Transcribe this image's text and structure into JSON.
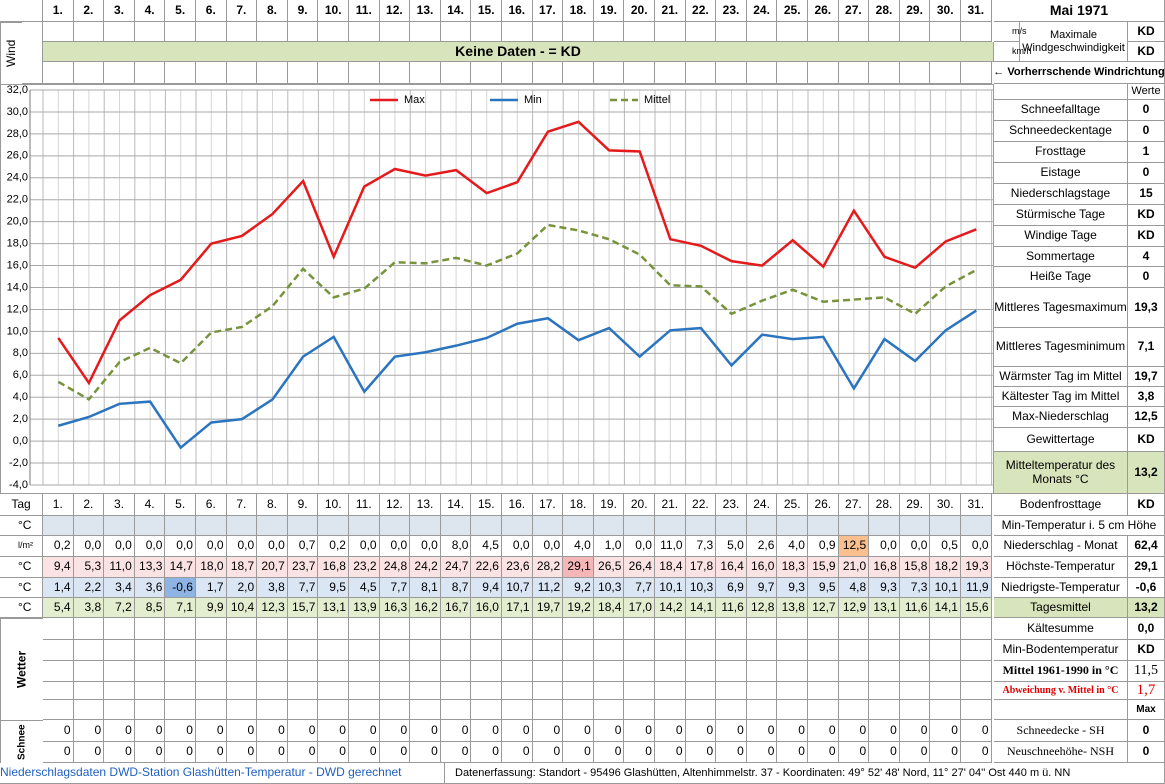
{
  "header": {
    "month": "Mai 1971",
    "wind_label": "Wind",
    "unit_ms": "m/s",
    "unit_kmh": "km/h",
    "wind_max_label": "Maximale Windgeschwindigkeit",
    "wind_max_ms": "KD",
    "wind_max_kmh": "KD",
    "no_data": "Keine Daten -  = KD",
    "wind_direction": "← Vorherrschende Windrichtung",
    "werte": "Werte"
  },
  "chart_data": {
    "type": "line",
    "categories": [
      "1.",
      "2.",
      "3.",
      "4.",
      "5.",
      "6.",
      "7.",
      "8.",
      "9.",
      "10.",
      "11.",
      "12.",
      "13.",
      "14.",
      "15.",
      "16.",
      "17.",
      "18.",
      "19.",
      "20.",
      "21.",
      "22.",
      "23.",
      "24.",
      "25.",
      "26.",
      "27.",
      "28.",
      "29.",
      "30.",
      "31."
    ],
    "ylim": [
      -4,
      32
    ],
    "yticks": [
      {
        "value": -4,
        "label": "-4,0"
      },
      {
        "value": -2,
        "label": "-2,0"
      },
      {
        "value": 0,
        "label": "0,0"
      },
      {
        "value": 2,
        "label": "2,0"
      },
      {
        "value": 4,
        "label": "4,0"
      },
      {
        "value": 6,
        "label": "6,0"
      },
      {
        "value": 8,
        "label": "8,0"
      },
      {
        "value": 10,
        "label": "10,0"
      },
      {
        "value": 12,
        "label": "12,0"
      },
      {
        "value": 14,
        "label": "14,0"
      },
      {
        "value": 16,
        "label": "16,0"
      },
      {
        "value": 18,
        "label": "18,0"
      },
      {
        "value": 20,
        "label": "20,0"
      },
      {
        "value": 22,
        "label": "22,0"
      },
      {
        "value": 24,
        "label": "24,0"
      },
      {
        "value": 26,
        "label": "26,0"
      },
      {
        "value": 28,
        "label": "28,0"
      },
      {
        "value": 30,
        "label": "30,0"
      },
      {
        "value": 32,
        "label": "32,0"
      }
    ],
    "grid": true,
    "series": [
      {
        "name": "Max",
        "color": "#e41a1c",
        "dashed": false,
        "values": [
          9.4,
          5.3,
          11.0,
          13.3,
          14.7,
          18.0,
          18.7,
          20.7,
          23.7,
          16.8,
          23.2,
          24.8,
          24.2,
          24.7,
          22.6,
          23.6,
          28.2,
          29.1,
          26.5,
          26.4,
          18.4,
          17.8,
          16.4,
          16.0,
          18.3,
          15.9,
          21.0,
          16.8,
          15.8,
          18.2,
          19.3
        ],
        "value_labels": [
          "9,4",
          "5,3",
          "11,0",
          "13,3",
          "14,7",
          "18,0",
          "18,7",
          "20,7",
          "23,7",
          "16,8",
          "23,2",
          "24,8",
          "24,2",
          "24,7",
          "22,6",
          "23,6",
          "28,2",
          "29,1",
          "26,5",
          "26,4",
          "18,4",
          "17,8",
          "16,4",
          "16,0",
          "18,3",
          "15,9",
          "21,0",
          "16,8",
          "15,8",
          "18,2",
          "19,3"
        ]
      },
      {
        "name": "Min",
        "color": "#2a74c0",
        "dashed": false,
        "values": [
          1.4,
          2.2,
          3.4,
          3.6,
          -0.6,
          1.7,
          2.0,
          3.8,
          7.7,
          9.5,
          4.5,
          7.7,
          8.1,
          8.7,
          9.4,
          10.7,
          11.2,
          9.2,
          10.3,
          7.7,
          10.1,
          10.3,
          6.9,
          9.7,
          9.3,
          9.5,
          4.8,
          9.3,
          7.3,
          10.1,
          11.9
        ],
        "value_labels": [
          "1,4",
          "2,2",
          "3,4",
          "3,6",
          "-0,6",
          "1,7",
          "2,0",
          "3,8",
          "7,7",
          "9,5",
          "4,5",
          "7,7",
          "8,1",
          "8,7",
          "9,4",
          "10,7",
          "11,2",
          "9,2",
          "10,3",
          "7,7",
          "10,1",
          "10,3",
          "6,9",
          "9,7",
          "9,3",
          "9,5",
          "4,8",
          "9,3",
          "7,3",
          "10,1",
          "11,9"
        ]
      },
      {
        "name": "Mittel",
        "color": "#77933c",
        "dashed": true,
        "values": [
          5.4,
          3.8,
          7.2,
          8.5,
          7.1,
          9.9,
          10.4,
          12.3,
          15.7,
          13.1,
          13.9,
          16.3,
          16.2,
          16.7,
          16.0,
          17.1,
          19.7,
          19.2,
          18.4,
          17.0,
          14.2,
          14.1,
          11.6,
          12.8,
          13.8,
          12.7,
          12.9,
          13.1,
          11.6,
          14.1,
          15.6
        ],
        "value_labels": [
          "5,4",
          "3,8",
          "7,2",
          "8,5",
          "7,1",
          "9,9",
          "10,4",
          "12,3",
          "15,7",
          "13,1",
          "13,9",
          "16,3",
          "16,2",
          "16,7",
          "16,0",
          "17,1",
          "19,7",
          "19,2",
          "18,4",
          "17,0",
          "14,2",
          "14,1",
          "11,6",
          "12,8",
          "13,8",
          "12,7",
          "12,9",
          "13,1",
          "11,6",
          "14,1",
          "15,6"
        ]
      }
    ]
  },
  "table": {
    "tag": "Tag",
    "unit_c": "°C",
    "unit_mm": "l/m²",
    "precipitation": {
      "values": [
        0.2,
        0,
        0,
        0,
        0,
        0,
        0,
        0,
        0.7,
        0.2,
        0,
        0,
        0,
        8,
        4.5,
        0,
        0,
        4,
        1,
        0,
        11,
        7.3,
        5,
        2.6,
        4,
        0.9,
        12.5,
        0,
        0,
        0.5,
        0
      ],
      "value_labels": [
        "0,2",
        "0,0",
        "0,0",
        "0,0",
        "0,0",
        "0,0",
        "0,0",
        "0,0",
        "0,7",
        "0,2",
        "0,0",
        "0,0",
        "0,0",
        "8,0",
        "4,5",
        "0,0",
        "0,0",
        "4,0",
        "1,0",
        "0,0",
        "11,0",
        "7,3",
        "5,0",
        "2,6",
        "4,0",
        "0,9",
        "12,5",
        "0,0",
        "0,0",
        "0,5",
        "0,0"
      ]
    },
    "wetter_label": "Wetter",
    "schnee_label": "Schnee",
    "snow_days": [
      [
        "0",
        "0",
        "0",
        "0",
        "0",
        "0",
        "0",
        "0",
        "0",
        "0",
        "0",
        "0",
        "0",
        "0",
        "0",
        "0",
        "0",
        "0",
        "0",
        "0",
        "0",
        "0",
        "0",
        "0",
        "0",
        "0",
        "0",
        "0",
        "0",
        "0",
        "0"
      ],
      [
        "0",
        "0",
        "0",
        "0",
        "0",
        "0",
        "0",
        "0",
        "0",
        "0",
        "0",
        "0",
        "0",
        "0",
        "0",
        "0",
        "0",
        "0",
        "0",
        "0",
        "0",
        "0",
        "0",
        "0",
        "0",
        "0",
        "0",
        "0",
        "0",
        "0",
        "0"
      ]
    ]
  },
  "summary": [
    {
      "label": "Schneefalltage",
      "value": "0"
    },
    {
      "label": "Schneedeckentage",
      "value": "0"
    },
    {
      "label": "Frosttage",
      "value": "1"
    },
    {
      "label": "Eistage",
      "value": "0"
    },
    {
      "label": "Niederschlagstage",
      "value": "15"
    },
    {
      "label": "Stürmische Tage",
      "value": "KD"
    },
    {
      "label": "Windige Tage",
      "value": "KD"
    },
    {
      "label": "Sommertage",
      "value": "4"
    },
    {
      "label": "Heiße Tage",
      "value": "0"
    },
    {
      "label": "Mittleres Tagesmaximum",
      "value": "19,3"
    },
    {
      "label": "Mittleres Tagesminimum",
      "value": "7,1"
    },
    {
      "label": "Wärmster Tag im Mittel",
      "value": "19,7"
    },
    {
      "label": "Kältester Tag im Mittel",
      "value": "3,8"
    },
    {
      "label": "Max-Niederschlag",
      "value": "12,5"
    },
    {
      "label": "Gewittertage",
      "value": "KD"
    },
    {
      "label": "Mitteltemperatur des Monats °C",
      "value": "13,2"
    },
    {
      "label": "Bodenfrosttage",
      "value": "KD"
    },
    {
      "label": "Min-Temperatur i. 5 cm Höhe"
    },
    {
      "label": "Niederschlag - Monat",
      "value": "62,4"
    },
    {
      "label": "Höchste-Temperatur",
      "value": "29,1"
    },
    {
      "label": "Niedrigste-Temperatur",
      "value": "-0,6"
    },
    {
      "label": "Tagesmittel",
      "value": "13,2"
    },
    {
      "label": "Kältesumme",
      "value": "0,0"
    },
    {
      "label": "Min-Bodentemperatur",
      "value": "KD"
    },
    {
      "label": "Mittel 1961-1990 in °C",
      "value": "11,5"
    },
    {
      "label": "Abweichung v. Mittel in °C",
      "value": "1,7"
    },
    {
      "value": "Max"
    },
    {
      "label": "Schneedecke -  SH",
      "value": "0"
    },
    {
      "label": "Neuschneehöhe- NSH",
      "value": "0"
    }
  ],
  "footer": {
    "left": "Niederschlagsdaten DWD-Station Glashütten-Temperatur -  DWD gerechnet",
    "right": "Datenerfassung:  Standort -  95496  Glashütten, Altenhimmelstr. 37 - Koordinaten:  49° 52' 48' Nord,   11° 27' 04'' Ost   440 m ü. NN"
  }
}
